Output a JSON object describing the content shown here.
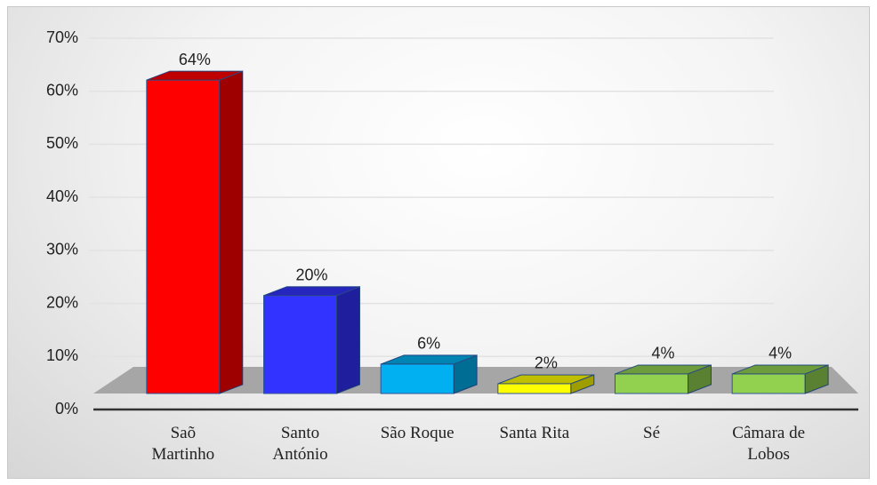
{
  "chart_data": {
    "type": "bar",
    "categories": [
      "Saõ Martinho",
      "Santo António",
      "São Roque",
      "Santa Rita",
      "Sé",
      "Câmara de Lobos"
    ],
    "values": [
      64,
      20,
      6,
      2,
      4,
      4
    ],
    "value_labels": [
      "64%",
      "20%",
      "6%",
      "2%",
      "4%",
      "4%"
    ],
    "colors": [
      "#ff0000",
      "#3333ff",
      "#00b0f0",
      "#ffff00",
      "#92d050",
      "#92d050"
    ],
    "ylim": [
      0,
      70
    ],
    "yticks": [
      {
        "value": 0,
        "label": "0%"
      },
      {
        "value": 10,
        "label": "10%"
      },
      {
        "value": 20,
        "label": "20%"
      },
      {
        "value": 30,
        "label": "30%"
      },
      {
        "value": 40,
        "label": "40%"
      },
      {
        "value": 50,
        "label": "50%"
      },
      {
        "value": 60,
        "label": "60%"
      },
      {
        "value": 70,
        "label": "70%"
      }
    ],
    "grid": true
  }
}
